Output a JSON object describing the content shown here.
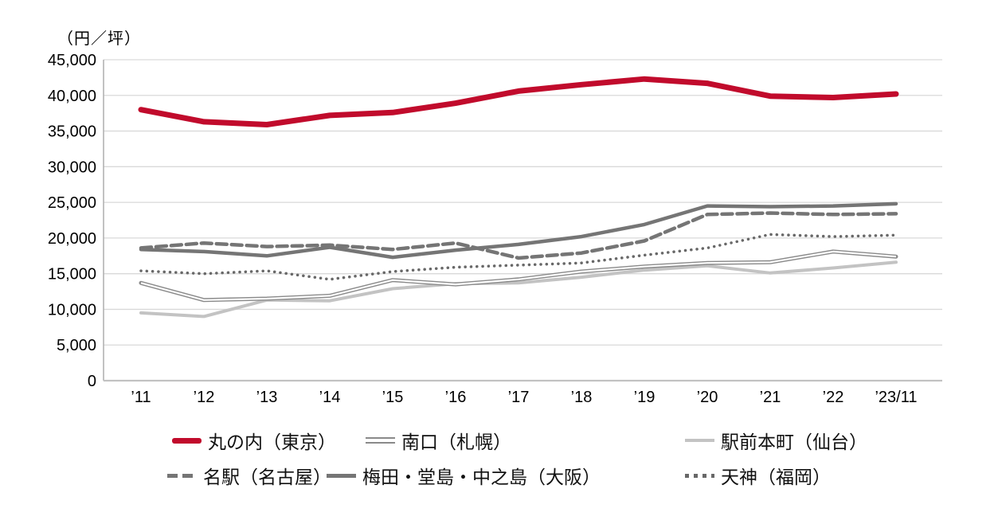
{
  "chart_data": {
    "type": "line",
    "unit_label": "（円／坪）",
    "categories": [
      "’11",
      "’12",
      "’13",
      "’14",
      "’15",
      "’16",
      "’17",
      "’18",
      "’19",
      "’20",
      "’21",
      "’22",
      "’23/11"
    ],
    "y_ticks": [
      "0",
      "5,000",
      "10,000",
      "15,000",
      "20,000",
      "25,000",
      "30,000",
      "35,000",
      "40,000",
      "45,000"
    ],
    "ylim": [
      0,
      45000
    ],
    "grid": "horizontal",
    "legend_position": "bottom",
    "series": [
      {
        "key": "tokyo",
        "name": "丸の内（東京）",
        "color": "#c10b2c",
        "width": 7,
        "line": "solid",
        "values": [
          38000,
          36300,
          35900,
          37200,
          37600,
          38900,
          40600,
          41500,
          42300,
          41700,
          39900,
          39700,
          40200
        ]
      },
      {
        "key": "sapporo",
        "name": "南口（札幌）",
        "color": "#8a8a8a",
        "width": 5,
        "line": "double",
        "values": [
          13700,
          11300,
          11500,
          11900,
          14100,
          13500,
          14200,
          15300,
          16000,
          16500,
          16600,
          18100,
          17400
        ]
      },
      {
        "key": "sendai",
        "name": "駅前本町（仙台）",
        "color": "#c3c3c3",
        "width": 4,
        "line": "solid",
        "values": [
          9500,
          9000,
          11300,
          11200,
          12900,
          13600,
          13700,
          14500,
          15500,
          16100,
          15100,
          15800,
          16600
        ]
      },
      {
        "key": "nagoya",
        "name": "名駅（名古屋）",
        "color": "#757575",
        "width": 4.5,
        "line": "dashed",
        "values": [
          18600,
          19300,
          18800,
          19000,
          18400,
          19300,
          17200,
          17900,
          19600,
          23300,
          23500,
          23300,
          23400
        ]
      },
      {
        "key": "osaka",
        "name": "梅田・堂島・中之島（大阪）",
        "color": "#757575",
        "width": 4.5,
        "line": "solid",
        "values": [
          18400,
          18100,
          17500,
          18700,
          17300,
          18300,
          19100,
          20200,
          21900,
          24500,
          24400,
          24500,
          24800
        ]
      },
      {
        "key": "fukuoka",
        "name": "天神（福岡）",
        "color": "#686868",
        "width": 3.5,
        "line": "dotted",
        "values": [
          15400,
          15000,
          15400,
          14200,
          15300,
          15900,
          16200,
          16500,
          17600,
          18600,
          20500,
          20200,
          20400
        ]
      }
    ],
    "legend_rows": [
      [
        "tokyo",
        "sapporo",
        "sendai"
      ],
      [
        "nagoya",
        "osaka",
        "fukuoka"
      ]
    ],
    "colors": {
      "grid": "#d9d9d9",
      "axis_left": "#b3b3b3",
      "axis_bottom": "#c2c2c2",
      "text": "#000000"
    }
  }
}
